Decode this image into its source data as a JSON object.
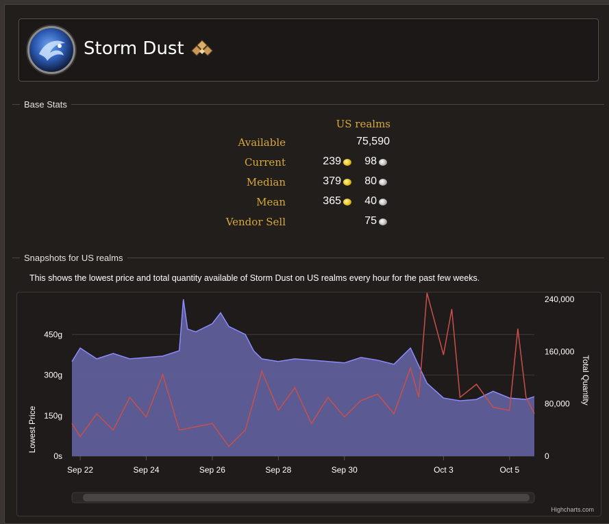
{
  "item": {
    "name": "Storm Dust"
  },
  "sections": {
    "base_stats": "Base Stats",
    "snapshots": "Snapshots for US realms"
  },
  "stats": {
    "column_header": "US realms",
    "rows": [
      {
        "label": "Available",
        "value": "75,590"
      },
      {
        "label": "Current",
        "gold": "239",
        "silver": "98"
      },
      {
        "label": "Median",
        "gold": "379",
        "silver": "80"
      },
      {
        "label": "Mean",
        "gold": "365",
        "silver": "40"
      },
      {
        "label": "Vendor Sell",
        "silver": "75"
      }
    ]
  },
  "description": "This shows the lowest price and total quantity available of Storm Dust on US realms every hour for the past few weeks.",
  "colors": {
    "price": "#8a8cff",
    "price_fill": "#5f5e9a",
    "quantity": "#c8504a",
    "gold_label": "#d8a838"
  },
  "chart_data": {
    "type": "area",
    "x_axis": {
      "type": "datetime",
      "ticks": [
        "Sep 22",
        "Sep 24",
        "Sep 26",
        "Sep 28",
        "Sep 30",
        "Oct 3",
        "Oct 5"
      ]
    },
    "y_axis_left": {
      "title": "Lowest Price",
      "unit": "g",
      "ticks": [
        "0s",
        "150g",
        "300g",
        "450g"
      ],
      "range": [
        0,
        580
      ]
    },
    "y_axis_right": {
      "title": "Total Quantity",
      "ticks": [
        "0",
        "80,000",
        "160,000",
        "240,000"
      ],
      "range": [
        0,
        240000
      ]
    },
    "series": [
      {
        "name": "Lowest Price",
        "type": "area",
        "unit": "gold",
        "x": [
          "Sep 21 18:00",
          "Sep 22 00:00",
          "Sep 22 12:00",
          "Sep 23 00:00",
          "Sep 23 12:00",
          "Sep 24 00:00",
          "Sep 24 12:00",
          "Sep 25 00:00",
          "Sep 25 03:00",
          "Sep 25 06:00",
          "Sep 25 12:00",
          "Sep 26 00:00",
          "Sep 26 06:00",
          "Sep 26 12:00",
          "Sep 27 00:00",
          "Sep 27 06:00",
          "Sep 27 12:00",
          "Sep 28 00:00",
          "Sep 28 12:00",
          "Sep 29 00:00",
          "Sep 29 12:00",
          "Sep 30 00:00",
          "Sep 30 12:00",
          "Oct 1 00:00",
          "Oct 1 12:00",
          "Oct 2 00:00",
          "Oct 2 12:00",
          "Oct 3 00:00",
          "Oct 3 12:00",
          "Oct 4 00:00",
          "Oct 4 12:00",
          "Oct 5 00:00",
          "Oct 5 12:00",
          "Oct 5 18:00"
        ],
        "values": [
          350,
          400,
          360,
          380,
          360,
          365,
          370,
          390,
          580,
          470,
          460,
          490,
          530,
          480,
          450,
          390,
          360,
          350,
          360,
          355,
          350,
          345,
          365,
          355,
          340,
          400,
          270,
          215,
          205,
          210,
          240,
          215,
          210,
          220
        ]
      },
      {
        "name": "Total Quantity",
        "type": "line",
        "x": [
          "Sep 21 18:00",
          "Sep 22 00:00",
          "Sep 22 12:00",
          "Sep 23 00:00",
          "Sep 23 12:00",
          "Sep 24 00:00",
          "Sep 24 12:00",
          "Sep 25 00:00",
          "Sep 25 12:00",
          "Sep 26 00:00",
          "Sep 26 12:00",
          "Sep 27 00:00",
          "Sep 27 12:00",
          "Sep 28 00:00",
          "Sep 28 12:00",
          "Sep 29 00:00",
          "Sep 29 12:00",
          "Sep 30 00:00",
          "Sep 30 12:00",
          "Oct 1 00:00",
          "Oct 1 12:00",
          "Oct 2 00:00",
          "Oct 2 06:00",
          "Oct 2 12:00",
          "Oct 3 00:00",
          "Oct 3 06:00",
          "Oct 3 12:00",
          "Oct 4 00:00",
          "Oct 4 12:00",
          "Oct 5 00:00",
          "Oct 5 06:00",
          "Oct 5 12:00",
          "Oct 5 18:00"
        ],
        "values": [
          50000,
          30000,
          65000,
          40000,
          90000,
          60000,
          125000,
          40000,
          45000,
          50000,
          15000,
          40000,
          130000,
          70000,
          105000,
          50000,
          90000,
          60000,
          85000,
          95000,
          65000,
          135000,
          90000,
          250000,
          155000,
          225000,
          90000,
          110000,
          75000,
          70000,
          195000,
          90000,
          65000
        ]
      }
    ],
    "navigator": {
      "scrollbar": true
    },
    "credits": "Highcharts.com",
    "legend": "none",
    "grid": true
  }
}
